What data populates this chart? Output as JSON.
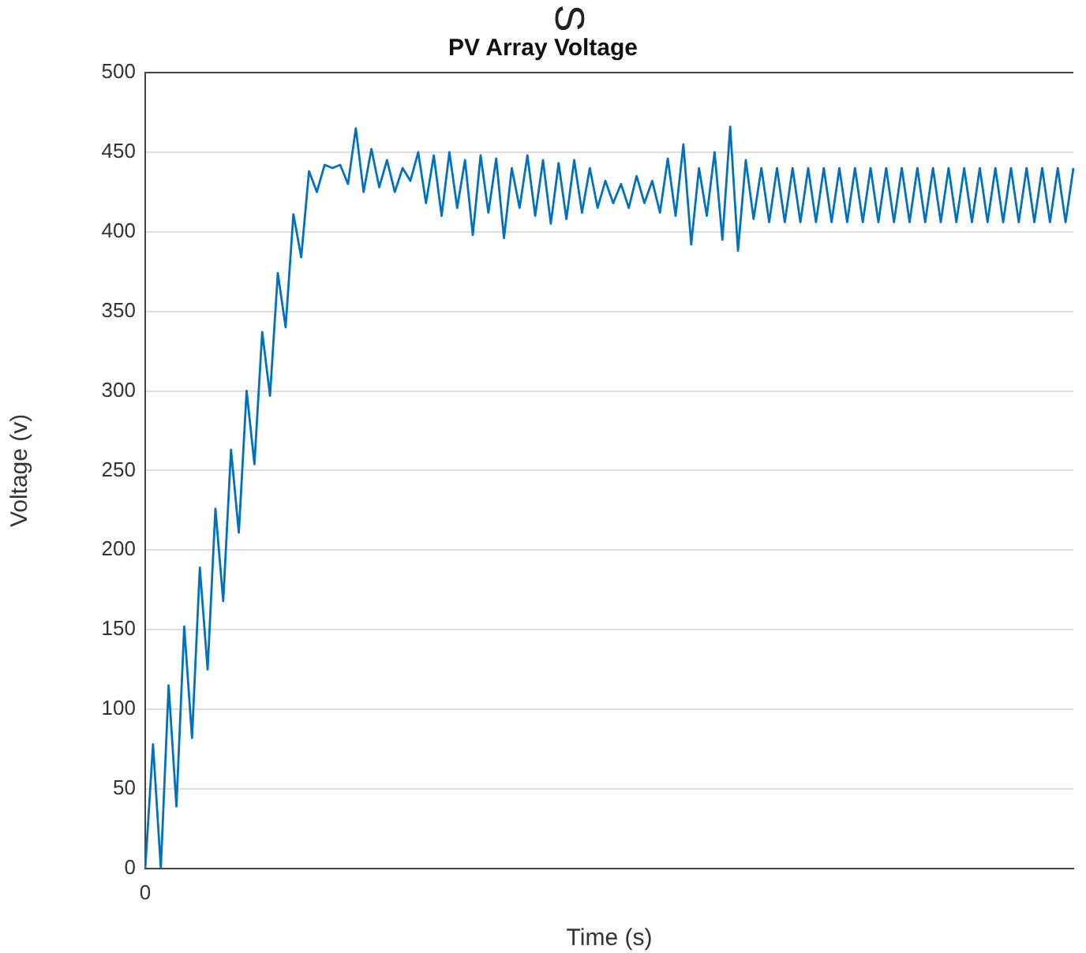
{
  "chart_data": {
    "type": "line",
    "title": "PV Array Voltage",
    "xlabel": "Time (s)",
    "ylabel": "Voltage (v)",
    "annotations": [
      "S"
    ],
    "categories": [
      "0",
      null,
      null,
      null,
      null,
      null,
      null,
      null,
      null,
      null,
      null,
      null,
      null,
      null,
      null,
      null,
      null,
      null,
      null,
      null,
      null,
      null,
      null,
      null,
      null,
      null,
      null,
      null,
      null,
      null,
      null,
      null,
      null,
      null,
      null,
      null,
      null,
      null,
      null,
      null,
      null,
      null,
      null,
      null,
      null,
      null,
      null,
      null,
      null,
      null,
      null,
      null,
      null,
      null,
      null,
      null,
      null,
      null,
      null,
      null,
      null,
      null,
      null,
      null,
      null,
      null,
      null,
      null,
      null,
      null,
      null,
      null,
      null,
      null,
      null,
      null,
      null,
      null,
      null,
      null,
      null,
      null,
      null,
      null,
      null,
      null,
      null,
      null,
      null,
      null,
      null,
      null,
      null,
      null,
      null,
      null,
      null,
      null,
      null,
      null,
      null,
      null,
      null,
      null,
      null,
      null,
      null,
      null,
      null,
      null,
      null,
      null,
      null,
      null,
      null,
      null,
      null,
      null,
      null,
      null
    ],
    "series": [
      {
        "color": "#0072bd",
        "values": [
          0,
          78,
          0,
          115,
          39,
          152,
          82,
          189,
          125,
          226,
          168,
          263,
          211,
          300,
          254,
          337,
          297,
          374,
          340,
          411,
          384,
          438,
          425,
          442,
          440,
          442,
          430,
          465,
          425,
          452,
          428,
          445,
          425,
          440,
          432,
          450,
          418,
          448,
          410,
          450,
          415,
          445,
          398,
          448,
          412,
          446,
          396,
          440,
          415,
          448,
          410,
          445,
          405,
          443,
          408,
          445,
          412,
          440,
          415,
          432,
          418,
          430,
          415,
          435,
          418,
          432,
          412,
          446,
          410,
          455,
          392,
          440,
          410,
          450,
          395,
          466,
          388,
          445,
          408,
          440,
          406,
          440,
          406,
          440,
          406,
          440,
          406,
          440,
          406,
          440,
          406,
          440,
          406,
          440,
          406,
          440,
          406,
          440,
          406,
          440,
          406,
          440,
          406,
          440,
          406,
          440,
          406,
          440,
          406,
          440,
          406,
          440,
          406,
          440,
          406,
          440,
          406,
          440,
          406,
          440
        ]
      }
    ],
    "ylim": [
      0,
      500
    ],
    "yticks": [
      0,
      50,
      100,
      150,
      200,
      250,
      300,
      350,
      400,
      450,
      500
    ],
    "grid": "y"
  }
}
